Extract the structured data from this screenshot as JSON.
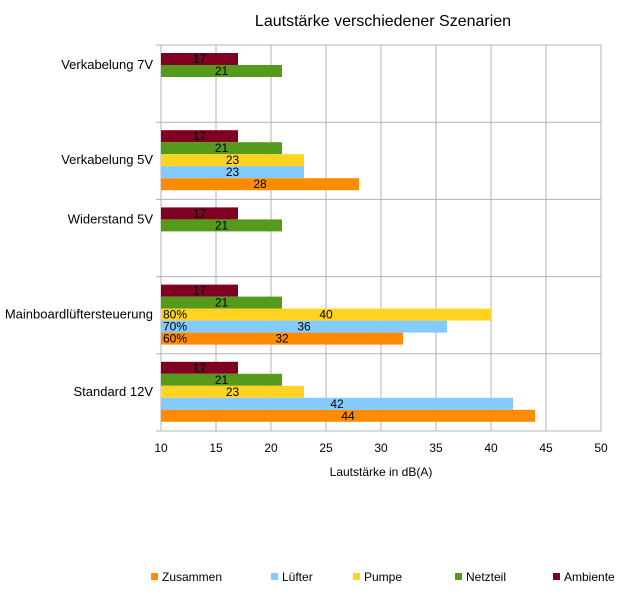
{
  "chart_data": {
    "type": "bar",
    "orientation": "horizontal",
    "title": "Lautstärke verschiedener Szenarien",
    "xlabel": "Lautstärke in dB(A)",
    "ylabel": "",
    "xlim": [
      10,
      50
    ],
    "x_ticks": [
      10,
      15,
      20,
      25,
      30,
      35,
      40,
      45,
      50
    ],
    "grid": true,
    "legend_position": "bottom",
    "categories": [
      "Verkabelung 7V",
      "Verkabelung 5V",
      "Widerstand 5V",
      "Mainboardlüftersteuerung",
      "Standard 12V"
    ],
    "series": [
      {
        "name": "Ambiente",
        "color": "#7f0020",
        "values": [
          17,
          17,
          17,
          17,
          17
        ]
      },
      {
        "name": "Netzteil",
        "color": "#559a1a",
        "values": [
          21,
          21,
          21,
          21,
          21
        ]
      },
      {
        "name": "Pumpe",
        "color": "#ffd320",
        "values": [
          null,
          23,
          null,
          40,
          23
        ]
      },
      {
        "name": "Lüfter",
        "color": "#83caff",
        "values": [
          null,
          23,
          null,
          36,
          42
        ]
      },
      {
        "name": "Zusammen",
        "color": "#ff8c00",
        "values": [
          null,
          28,
          null,
          32,
          44
        ]
      }
    ],
    "legend_order": [
      "Zusammen",
      "Lüfter",
      "Pumpe",
      "Netzteil",
      "Ambiente"
    ],
    "annotations": [
      {
        "category": "Mainboardlüftersteuerung",
        "series": "Pumpe",
        "text": "80%"
      },
      {
        "category": "Mainboardlüftersteuerung",
        "series": "Lüfter",
        "text": "70%"
      },
      {
        "category": "Mainboardlüftersteuerung",
        "series": "Zusammen",
        "text": "60%"
      }
    ]
  }
}
